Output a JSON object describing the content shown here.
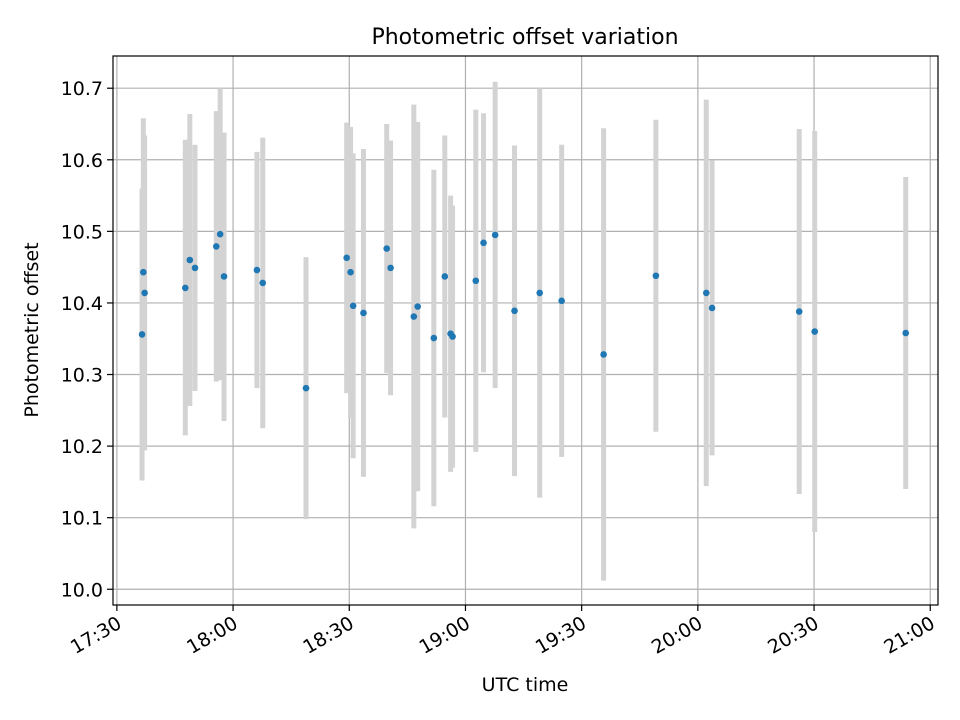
{
  "chart_data": {
    "type": "scatter",
    "title": "Photometric offset variation",
    "xlabel": "UTC time",
    "ylabel": "Photometric offset",
    "xlim": [
      "17:29",
      "21:02"
    ],
    "ylim": [
      9.978,
      10.745
    ],
    "x_ticks": [
      "17:30",
      "18:00",
      "18:30",
      "19:00",
      "19:30",
      "20:00",
      "20:30",
      "21:00"
    ],
    "y_ticks": [
      "10.0",
      "10.1",
      "10.2",
      "10.3",
      "10.4",
      "10.5",
      "10.6",
      "10.7"
    ],
    "grid": true,
    "marker_color": "#1f77b4",
    "errorbar_color": "#d3d3d3",
    "points": [
      {
        "x": "17:36:30",
        "y": 10.356,
        "err_low": 10.152,
        "err_high": 10.56
      },
      {
        "x": "17:36:50",
        "y": 10.443,
        "err_low": 10.228,
        "err_high": 10.658
      },
      {
        "x": "17:37:10",
        "y": 10.414,
        "err_low": 10.194,
        "err_high": 10.634
      },
      {
        "x": "17:47:40",
        "y": 10.421,
        "err_low": 10.215,
        "err_high": 10.628
      },
      {
        "x": "17:48:50",
        "y": 10.46,
        "err_low": 10.256,
        "err_high": 10.664
      },
      {
        "x": "17:50:10",
        "y": 10.449,
        "err_low": 10.277,
        "err_high": 10.621
      },
      {
        "x": "17:55:40",
        "y": 10.479,
        "err_low": 10.29,
        "err_high": 10.668
      },
      {
        "x": "17:56:40",
        "y": 10.496,
        "err_low": 10.292,
        "err_high": 10.7
      },
      {
        "x": "17:57:40",
        "y": 10.437,
        "err_low": 10.235,
        "err_high": 10.638
      },
      {
        "x": "18:06:10",
        "y": 10.446,
        "err_low": 10.281,
        "err_high": 10.611
      },
      {
        "x": "18:07:40",
        "y": 10.428,
        "err_low": 10.225,
        "err_high": 10.631
      },
      {
        "x": "18:18:50",
        "y": 10.281,
        "err_low": 10.098,
        "err_high": 10.464
      },
      {
        "x": "18:29:20",
        "y": 10.463,
        "err_low": 10.274,
        "err_high": 10.652
      },
      {
        "x": "18:30:20",
        "y": 10.443,
        "err_low": 10.24,
        "err_high": 10.646
      },
      {
        "x": "18:31:00",
        "y": 10.396,
        "err_low": 10.183,
        "err_high": 10.609
      },
      {
        "x": "18:33:40",
        "y": 10.386,
        "err_low": 10.157,
        "err_high": 10.615
      },
      {
        "x": "18:39:40",
        "y": 10.476,
        "err_low": 10.302,
        "err_high": 10.65
      },
      {
        "x": "18:40:40",
        "y": 10.449,
        "err_low": 10.271,
        "err_high": 10.627
      },
      {
        "x": "18:46:40",
        "y": 10.381,
        "err_low": 10.085,
        "err_high": 10.677
      },
      {
        "x": "18:47:40",
        "y": 10.395,
        "err_low": 10.137,
        "err_high": 10.653
      },
      {
        "x": "18:51:50",
        "y": 10.351,
        "err_low": 10.116,
        "err_high": 10.586
      },
      {
        "x": "18:54:40",
        "y": 10.437,
        "err_low": 10.24,
        "err_high": 10.634
      },
      {
        "x": "18:56:10",
        "y": 10.357,
        "err_low": 10.164,
        "err_high": 10.55
      },
      {
        "x": "18:56:40",
        "y": 10.353,
        "err_low": 10.17,
        "err_high": 10.536
      },
      {
        "x": "19:02:40",
        "y": 10.431,
        "err_low": 10.192,
        "err_high": 10.67
      },
      {
        "x": "19:04:40",
        "y": 10.484,
        "err_low": 10.303,
        "err_high": 10.665
      },
      {
        "x": "19:07:40",
        "y": 10.495,
        "err_low": 10.281,
        "err_high": 10.709
      },
      {
        "x": "19:12:40",
        "y": 10.389,
        "err_low": 10.158,
        "err_high": 10.62
      },
      {
        "x": "19:19:10",
        "y": 10.414,
        "err_low": 10.128,
        "err_high": 10.7
      },
      {
        "x": "19:24:50",
        "y": 10.403,
        "err_low": 10.185,
        "err_high": 10.621
      },
      {
        "x": "19:35:40",
        "y": 10.328,
        "err_low": 10.012,
        "err_high": 10.644
      },
      {
        "x": "19:49:10",
        "y": 10.438,
        "err_low": 10.22,
        "err_high": 10.656
      },
      {
        "x": "20:02:10",
        "y": 10.414,
        "err_low": 10.144,
        "err_high": 10.684
      },
      {
        "x": "20:03:40",
        "y": 10.393,
        "err_low": 10.187,
        "err_high": 10.599
      },
      {
        "x": "20:26:10",
        "y": 10.388,
        "err_low": 10.133,
        "err_high": 10.643
      },
      {
        "x": "20:30:10",
        "y": 10.36,
        "err_low": 10.08,
        "err_high": 10.64
      },
      {
        "x": "20:53:40",
        "y": 10.358,
        "err_low": 10.14,
        "err_high": 10.576
      }
    ]
  }
}
